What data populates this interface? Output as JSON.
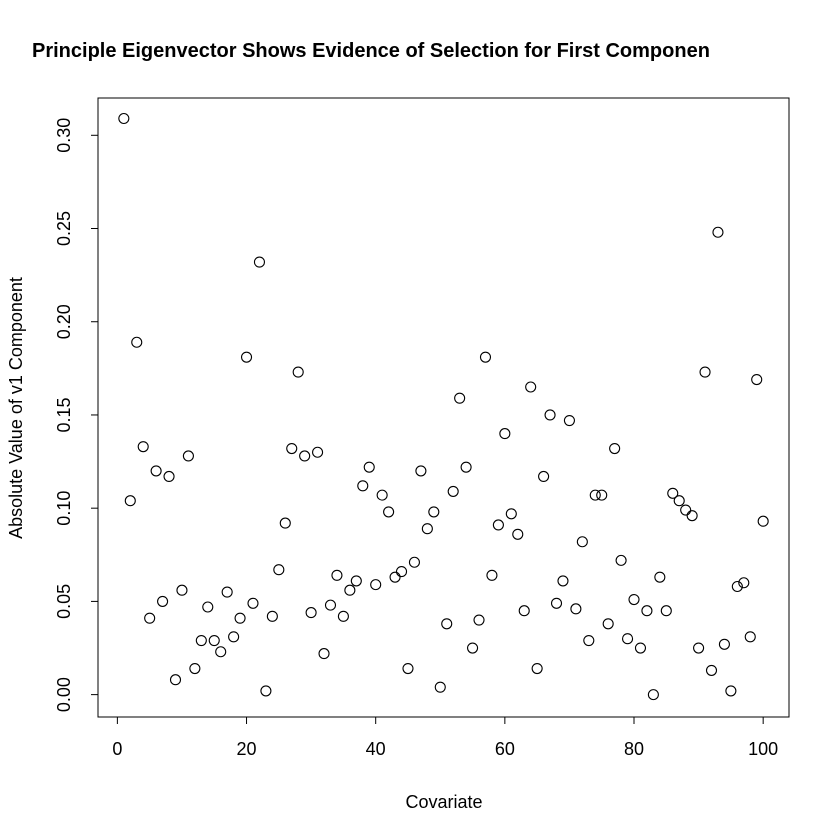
{
  "chart_data": {
    "type": "scatter",
    "title": "Principle Eigenvector Shows Evidence of Selection for First Componen",
    "xlabel": "Covariate",
    "ylabel": "Absolute Value of v1 Component",
    "xlim": [
      -3,
      104
    ],
    "ylim": [
      -0.012,
      0.32
    ],
    "xticks": [
      "0",
      "20",
      "40",
      "60",
      "80",
      "100"
    ],
    "yticks": [
      "0.00",
      "0.05",
      "0.10",
      "0.15",
      "0.20",
      "0.25",
      "0.30"
    ],
    "grid": false,
    "legend": "none",
    "x": [
      1,
      2,
      3,
      4,
      5,
      6,
      7,
      8,
      9,
      10,
      11,
      12,
      13,
      14,
      15,
      16,
      17,
      18,
      19,
      20,
      21,
      22,
      23,
      24,
      25,
      26,
      27,
      28,
      29,
      30,
      31,
      32,
      33,
      34,
      35,
      36,
      37,
      38,
      39,
      40,
      41,
      42,
      43,
      44,
      45,
      46,
      47,
      48,
      49,
      50,
      51,
      52,
      53,
      54,
      55,
      56,
      57,
      58,
      59,
      60,
      61,
      62,
      63,
      64,
      65,
      66,
      67,
      68,
      69,
      70,
      71,
      72,
      73,
      74,
      75,
      76,
      77,
      78,
      79,
      80,
      81,
      82,
      83,
      84,
      85,
      86,
      87,
      88,
      89,
      90,
      91,
      92,
      93,
      94,
      95,
      96,
      97,
      98,
      99,
      100
    ],
    "y": [
      0.309,
      0.104,
      0.189,
      0.133,
      0.041,
      0.12,
      0.05,
      0.117,
      0.008,
      0.056,
      0.128,
      0.014,
      0.029,
      0.047,
      0.029,
      0.023,
      0.055,
      0.031,
      0.041,
      0.181,
      0.049,
      0.232,
      0.002,
      0.042,
      0.067,
      0.092,
      0.132,
      0.173,
      0.128,
      0.044,
      0.13,
      0.022,
      0.048,
      0.064,
      0.042,
      0.056,
      0.061,
      0.112,
      0.122,
      0.059,
      0.107,
      0.098,
      0.063,
      0.066,
      0.014,
      0.071,
      0.12,
      0.089,
      0.098,
      0.004,
      0.038,
      0.109,
      0.159,
      0.122,
      0.025,
      0.04,
      0.181,
      0.064,
      0.091,
      0.14,
      0.097,
      0.086,
      0.045,
      0.165,
      0.014,
      0.117,
      0.15,
      0.049,
      0.061,
      0.147,
      0.046,
      0.082,
      0.029,
      0.107,
      0.107,
      0.038,
      0.132,
      0.072,
      0.03,
      0.051,
      0.025,
      0.045,
      0.0,
      0.063,
      0.045,
      0.108,
      0.104,
      0.099,
      0.096,
      0.025,
      0.173,
      0.013,
      0.248,
      0.027,
      0.002,
      0.058,
      0.06,
      0.031,
      0.169,
      0.093
    ]
  }
}
